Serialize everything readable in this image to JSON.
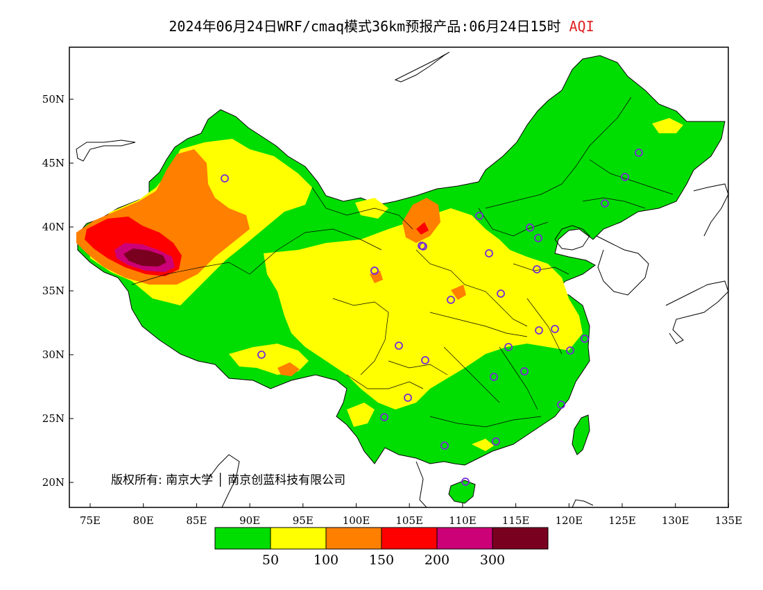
{
  "title": {
    "main": "2024年06月24日WRF/cmaq模式36km预报产品:06月24日15时",
    "variable": "AQI"
  },
  "colors": {
    "title_accent": "#e02020",
    "ocean": "#ffffff",
    "border": "#000000",
    "station_marker": "#7a2bd6"
  },
  "axes": {
    "x_ticks": [
      "75E",
      "80E",
      "85E",
      "90E",
      "95E",
      "100E",
      "105E",
      "110E",
      "115E",
      "120E",
      "125E",
      "130E",
      "135E"
    ],
    "y_ticks": [
      "50N",
      "45N",
      "40N",
      "35N",
      "30N",
      "25N",
      "20N"
    ]
  },
  "copyright": "版权所有: 南京大学 │ 南京创蓝科技有限公司",
  "legend": {
    "colors": [
      "#00dd00",
      "#ffff00",
      "#ff7f00",
      "#ff0000",
      "#cc0077",
      "#7a0020"
    ],
    "labels": [
      "50",
      "100",
      "150",
      "200",
      "300"
    ]
  },
  "stations": [
    {
      "name": "urumqi"
    },
    {
      "name": "lanzhou"
    },
    {
      "name": "xining"
    },
    {
      "name": "yinchuan"
    },
    {
      "name": "hohhot"
    },
    {
      "name": "taiyuan"
    },
    {
      "name": "shijiazhuang"
    },
    {
      "name": "beijing"
    },
    {
      "name": "tianjin"
    },
    {
      "name": "jinan"
    },
    {
      "name": "zhengzhou"
    },
    {
      "name": "xian"
    },
    {
      "name": "chengdu"
    },
    {
      "name": "chongqing"
    },
    {
      "name": "wuhan"
    },
    {
      "name": "hefei"
    },
    {
      "name": "nanjing"
    },
    {
      "name": "shanghai"
    },
    {
      "name": "hangzhou"
    },
    {
      "name": "nanchang"
    },
    {
      "name": "changsha"
    },
    {
      "name": "guiyang"
    },
    {
      "name": "kunming"
    },
    {
      "name": "nanning"
    },
    {
      "name": "guangzhou"
    },
    {
      "name": "fuzhou"
    },
    {
      "name": "haikou"
    },
    {
      "name": "lhasa"
    },
    {
      "name": "harbin"
    },
    {
      "name": "changchun"
    },
    {
      "name": "shenyang"
    }
  ]
}
